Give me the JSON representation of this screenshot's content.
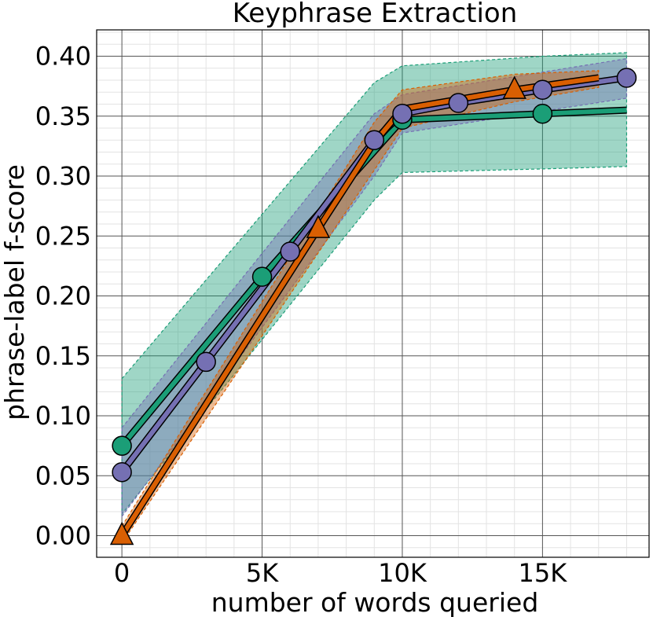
{
  "chart_data": {
    "type": "line",
    "title": "Keyphrase Extraction",
    "xlabel": "number of words queried",
    "ylabel": "phrase-label f-score",
    "xlim": [
      -900,
      18800
    ],
    "ylim": [
      -0.018,
      0.422
    ],
    "xticks": [
      0,
      5000,
      10000,
      15000
    ],
    "xtick_labels": [
      "0",
      "5K",
      "10K",
      "15K"
    ],
    "yticks": [
      0.0,
      0.05,
      0.1,
      0.15,
      0.2,
      0.25,
      0.3,
      0.35,
      0.4
    ],
    "ytick_labels": [
      "0.00",
      "0.05",
      "0.10",
      "0.15",
      "0.20",
      "0.25",
      "0.30",
      "0.35",
      "0.40"
    ],
    "grid": true,
    "series": [
      {
        "name": "series-green",
        "color": "#1b9e77",
        "marker": "circle",
        "x": [
          0,
          5000,
          10000,
          15000,
          18000
        ],
        "y": [
          0.075,
          0.216,
          0.347,
          0.352,
          0.355
        ],
        "marker_x": [
          0,
          5000,
          10000,
          15000
        ],
        "marker_y": [
          0.075,
          0.216,
          0.347,
          0.352
        ],
        "band_x": [
          0,
          9000,
          10000,
          15000,
          18000
        ],
        "band_lower": [
          0.018,
          0.28,
          0.303,
          0.306,
          0.308
        ],
        "band_upper": [
          0.131,
          0.378,
          0.392,
          0.4,
          0.403
        ]
      },
      {
        "name": "series-purple",
        "color": "#7570b3",
        "marker": "circle",
        "x": [
          0,
          3000,
          6000,
          9000,
          10000,
          12000,
          15000,
          18000
        ],
        "y": [
          0.053,
          0.145,
          0.237,
          0.33,
          0.352,
          0.361,
          0.372,
          0.382
        ],
        "marker_x": [
          0,
          3000,
          6000,
          9000,
          10000,
          12000,
          15000,
          18000
        ],
        "marker_y": [
          0.053,
          0.145,
          0.237,
          0.33,
          0.352,
          0.361,
          0.372,
          0.382
        ],
        "band_x": [
          0,
          9000,
          10000,
          18000
        ],
        "band_lower": [
          0.016,
          0.3,
          0.336,
          0.365
        ],
        "band_upper": [
          0.09,
          0.352,
          0.368,
          0.398
        ]
      },
      {
        "name": "series-orange",
        "color": "#d95f02",
        "marker": "triangle",
        "x": [
          0,
          7000,
          9000,
          10000,
          14000,
          17000
        ],
        "y": [
          0.0,
          0.256,
          0.328,
          0.356,
          0.372,
          0.382
        ],
        "marker_x": [
          0,
          7000,
          14000
        ],
        "marker_y": [
          0.0,
          0.256,
          0.372
        ],
        "band_x": [
          0,
          9000,
          10000,
          14000,
          17000
        ],
        "band_lower": [
          -0.006,
          0.305,
          0.34,
          0.362,
          0.374
        ],
        "band_upper": [
          0.008,
          0.345,
          0.372,
          0.385,
          0.388
        ]
      }
    ]
  }
}
